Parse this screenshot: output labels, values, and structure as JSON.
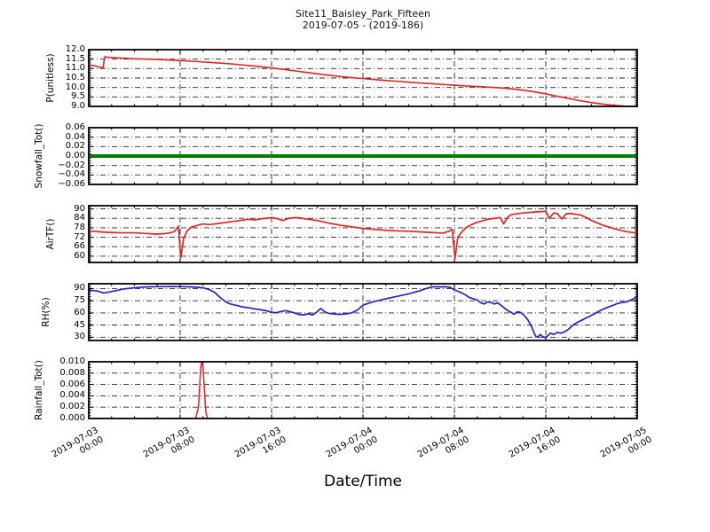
{
  "figure": {
    "title_line1": "Site11_Baisley_Park_Fifteen",
    "title_line2": "2019-07-05 - (2019-186)",
    "xlabel": "Date/Time",
    "background": "#ffffff"
  },
  "axis": {
    "x_min_hours": 0,
    "x_max_hours": 48,
    "xtick_hours": [
      0,
      8,
      16,
      24,
      32,
      40,
      48
    ],
    "xtick_labels": [
      [
        "2019-07-03",
        "00:00"
      ],
      [
        "2019-07-03",
        "08:00"
      ],
      [
        "2019-07-03",
        "16:00"
      ],
      [
        "2019-07-04",
        "00:00"
      ],
      [
        "2019-07-04",
        "08:00"
      ],
      [
        "2019-07-04",
        "16:00"
      ],
      [
        "2019-07-05",
        "00:00"
      ]
    ],
    "x_minor_step_hours": 2,
    "grid": true,
    "grid_color": "#000000",
    "grid_style": "dash-dot",
    "legend": "none"
  },
  "chart_data": [
    {
      "type": "line",
      "ylabel": "P(unitless)",
      "color": "#e32222",
      "line_width": 1.6,
      "ylim": [
        9.0,
        12.0
      ],
      "yticks": [
        9.0,
        9.5,
        10.0,
        10.5,
        11.0,
        11.5,
        12.0
      ],
      "ytick_labels": [
        "12.0",
        "11.5",
        "11.0",
        "10.5",
        "10.0",
        "9.5",
        "9.0"
      ],
      "y_minor_step": 0.1,
      "x": [
        0,
        0.7,
        1.1,
        1.25,
        1.4,
        2,
        3,
        4,
        5,
        6,
        7,
        8,
        9,
        10,
        11,
        12,
        13,
        14,
        15,
        16,
        17,
        18,
        19,
        20,
        21,
        22,
        23,
        24,
        25,
        26,
        27,
        28,
        29,
        30,
        31,
        32,
        33,
        34,
        35,
        36,
        37,
        38,
        39,
        40,
        41,
        42,
        43,
        44,
        45,
        46,
        47,
        48
      ],
      "values": [
        11.2,
        11.12,
        11.05,
        11.05,
        11.62,
        11.58,
        11.55,
        11.52,
        11.5,
        11.48,
        11.45,
        11.42,
        11.39,
        11.35,
        11.31,
        11.27,
        11.22,
        11.16,
        11.1,
        11.03,
        10.96,
        10.88,
        10.8,
        10.72,
        10.65,
        10.58,
        10.52,
        10.47,
        10.42,
        10.37,
        10.33,
        10.28,
        10.24,
        10.2,
        10.16,
        10.12,
        10.08,
        10.05,
        10.02,
        9.98,
        9.93,
        9.86,
        9.77,
        9.66,
        9.54,
        9.42,
        9.3,
        9.2,
        9.12,
        9.05,
        9.01,
        9.0
      ]
    },
    {
      "type": "line",
      "ylabel": "Snowfall_Tot()",
      "color": "#008000",
      "line_width": 4,
      "ylim": [
        -0.06,
        0.06
      ],
      "yticks": [
        -0.06,
        -0.04,
        -0.02,
        0.0,
        0.02,
        0.04,
        0.06
      ],
      "ytick_labels": [
        "0.06",
        "0.04",
        "0.02",
        "0.00",
        "−0.02",
        "−0.04",
        "−0.06"
      ],
      "y_minor_step": 0.005,
      "x": [
        0,
        48
      ],
      "values": [
        0,
        0
      ]
    },
    {
      "type": "line",
      "ylabel": "AirTF()",
      "color": "#e32222",
      "line_width": 1.7,
      "ylim": [
        56,
        92
      ],
      "yticks": [
        60,
        66,
        72,
        78,
        84,
        90
      ],
      "ytick_labels": [
        "90",
        "84",
        "78",
        "72",
        "66",
        "60"
      ],
      "y_minor_step": 1,
      "x": [
        0,
        1,
        2,
        3,
        4,
        5,
        5.8,
        6.5,
        7,
        7.5,
        7.85,
        8.05,
        8.3,
        8.6,
        9,
        9.5,
        10,
        10.5,
        11,
        11.5,
        12,
        13,
        14,
        14.5,
        15,
        15.5,
        16,
        16.5,
        17,
        17.5,
        18,
        18.5,
        19,
        20,
        21,
        22,
        23,
        24,
        25,
        26,
        27,
        28,
        29,
        30,
        30.5,
        31,
        31.5,
        31.8,
        32.05,
        32.3,
        32.6,
        33,
        33.5,
        34,
        35,
        36,
        36.3,
        36.7,
        37,
        38,
        39,
        40,
        40.3,
        40.7,
        41,
        41.4,
        41.8,
        42.2,
        42.6,
        43,
        43.5,
        44,
        45,
        46,
        47,
        48
      ],
      "values": [
        76,
        75.4,
        75,
        74.8,
        74.8,
        74.4,
        74,
        74.2,
        74.6,
        75.6,
        79,
        59,
        71,
        76,
        78.5,
        79.5,
        80.5,
        80,
        80.4,
        80.9,
        81.4,
        82.4,
        83.4,
        83,
        83.6,
        84,
        84.4,
        83.8,
        82.6,
        84,
        84.4,
        84.2,
        83.6,
        82.6,
        81,
        79.6,
        78.6,
        77.6,
        77,
        76.4,
        76,
        75.8,
        75.4,
        75,
        74.8,
        74.6,
        75.8,
        77,
        58.5,
        72,
        75,
        78,
        80,
        81.5,
        83.5,
        84.5,
        80.5,
        85,
        86.4,
        87.4,
        88,
        88.4,
        84,
        87.4,
        87,
        83.6,
        87,
        87,
        86.6,
        86.2,
        84.6,
        82.6,
        79.6,
        77.4,
        75.6,
        74.6
      ]
    },
    {
      "type": "line",
      "ylabel": "RH(%)",
      "color": "#2222cc",
      "line_width": 1.7,
      "ylim": [
        26,
        96
      ],
      "yticks": [
        30,
        45,
        60,
        75,
        90
      ],
      "ytick_labels": [
        "90",
        "75",
        "60",
        "45",
        "30"
      ],
      "y_minor_step": 3,
      "x": [
        0,
        0.7,
        1.3,
        2,
        3,
        4,
        5,
        6,
        7,
        8,
        9,
        9.5,
        10,
        10.5,
        11,
        11.5,
        12,
        12.4,
        13,
        13.6,
        14,
        14.5,
        15,
        15.5,
        16,
        16.4,
        16.8,
        17.2,
        17.6,
        18,
        18.4,
        18.8,
        19.2,
        19.6,
        20,
        20.3,
        20.7,
        21,
        21.5,
        22,
        22.5,
        23,
        23.5,
        24,
        24.5,
        25,
        26,
        27,
        28,
        29,
        29.5,
        30,
        30.4,
        30.8,
        31.2,
        31.6,
        32,
        32.5,
        33,
        33.3,
        33.7,
        34,
        34.3,
        34.6,
        34.9,
        35.2,
        35.5,
        35.8,
        36.2,
        36.6,
        37,
        37.2,
        37.5,
        37.8,
        38.1,
        38.4,
        38.7,
        38.9,
        39.1,
        39.3,
        39.5,
        39.7,
        39.9,
        40.1,
        40.4,
        40.7,
        41,
        41.3,
        41.7,
        42,
        42.3,
        42.6,
        43,
        43.5,
        44,
        44.5,
        45,
        45.5,
        46,
        46.3,
        46.7,
        47,
        47.3,
        47.7,
        48
      ],
      "values": [
        88,
        87.2,
        84.6,
        86.4,
        89.4,
        91,
        92,
        92.4,
        92.5,
        92.5,
        92,
        91.6,
        91,
        89,
        85.5,
        79,
        73.5,
        71,
        69,
        67,
        66.4,
        65,
        64,
        62.8,
        60.8,
        60.2,
        61.6,
        62.8,
        61.6,
        60,
        58,
        57.6,
        58.8,
        57.6,
        61.5,
        65.5,
        61,
        59.4,
        58.6,
        58.2,
        58.8,
        60,
        63.5,
        69.5,
        72,
        74,
        77.5,
        80.5,
        83.5,
        87.5,
        90,
        91.8,
        92.4,
        92,
        92.3,
        91.6,
        88.5,
        85.5,
        82,
        79,
        77.4,
        76,
        72.5,
        71,
        73.5,
        73,
        71,
        72.4,
        68,
        63.5,
        60.4,
        58.4,
        61.4,
        60.6,
        57,
        52,
        45,
        38,
        31.5,
        30,
        33.5,
        31,
        29.5,
        31,
        35,
        33.5,
        36,
        35,
        37,
        40,
        44,
        47,
        50,
        53.5,
        57,
        61,
        64.5,
        67.5,
        70,
        71.8,
        73,
        73.4,
        75,
        77.5,
        81
      ]
    },
    {
      "type": "line",
      "ylabel": "Rainfall_Tot()",
      "color": "#e32222",
      "line_width": 1.5,
      "ylim": [
        0.0,
        0.01
      ],
      "yticks": [
        0.0,
        0.002,
        0.004,
        0.006,
        0.008,
        0.01
      ],
      "ytick_labels": [
        "0.010",
        "0.008",
        "0.006",
        "0.004",
        "0.002",
        "0.000"
      ],
      "y_minor_step": 0.0005,
      "x": [
        0,
        9.35,
        9.6,
        9.8,
        9.9,
        10.0,
        10.25,
        10.4,
        48
      ],
      "values": [
        0,
        0,
        0.002,
        0.009,
        0.01,
        0.009,
        0.001,
        0,
        0
      ]
    }
  ]
}
